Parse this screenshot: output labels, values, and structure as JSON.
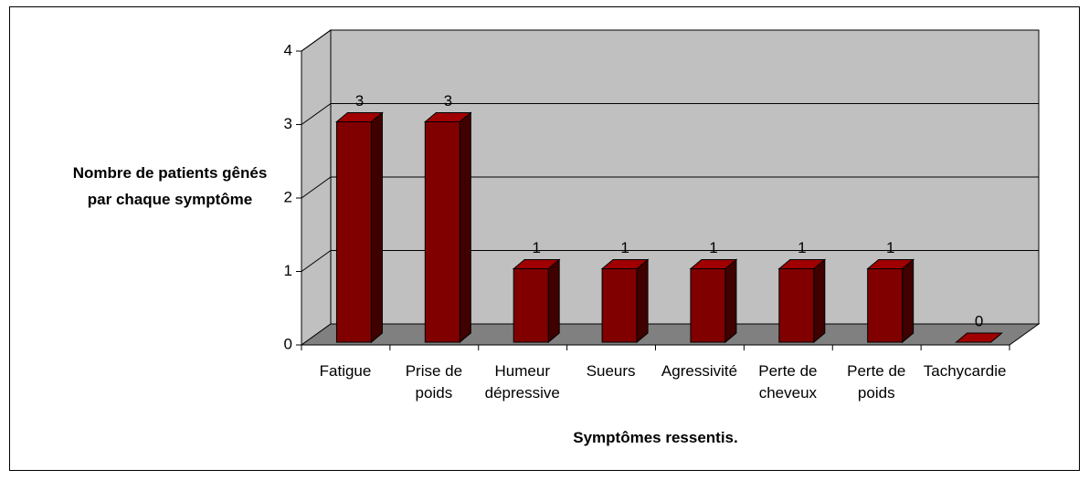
{
  "chart_data": {
    "type": "bar3d",
    "categories": [
      "Fatigue",
      "Prise de poids",
      "Humeur dépressive",
      "Sueurs",
      "Agressivité",
      "Perte de cheveux",
      "Perte de poids",
      "Tachycardie"
    ],
    "values": [
      3,
      3,
      1,
      1,
      1,
      1,
      1,
      0
    ],
    "color": "#800000",
    "ylim": [
      0,
      4
    ],
    "yticks": [
      0,
      1,
      2,
      3,
      4
    ],
    "grid": true,
    "ylabel": "Nombre de patients gênés par chaque symptôme",
    "xlabel": "Symptômes ressentis."
  }
}
